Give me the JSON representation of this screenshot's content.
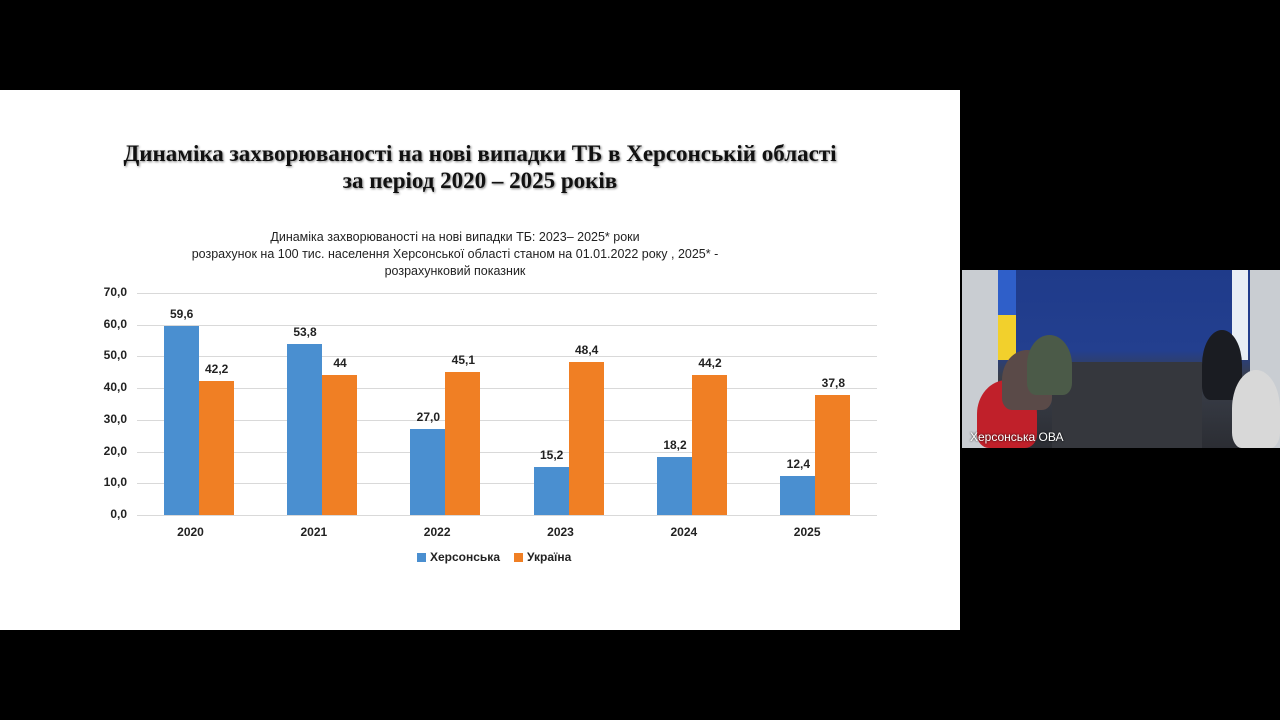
{
  "slide": {
    "title_line1": "Динаміка захворюваності на нові випадки ТБ в Херсонській області",
    "title_line2": "за період 2020 – 2025 років"
  },
  "chart_data": {
    "type": "bar",
    "title": "Динаміка захворюваності на нові випадки ТБ: 2023– 2025* роки",
    "subtitle_line1": "розрахунок на 100 тис. населення Херсонської області станом на 01.01.2022 року , 2025* -",
    "subtitle_line2": "розрахунковий показник",
    "categories": [
      "2020",
      "2021",
      "2022",
      "2023",
      "2024",
      "2025"
    ],
    "series": [
      {
        "name": "Херсонська",
        "color": "#4a8fd0",
        "values": [
          59.6,
          53.8,
          27.0,
          15.2,
          18.2,
          12.4
        ],
        "labels": [
          "59,6",
          "53,8",
          "27,0",
          "15,2",
          "18,2",
          "12,4"
        ]
      },
      {
        "name": "Україна",
        "color": "#f07f24",
        "values": [
          42.2,
          44,
          45.1,
          48.4,
          44.2,
          37.8
        ],
        "labels": [
          "42,2",
          "44",
          "45,1",
          "48,4",
          "44,2",
          "37,8"
        ]
      }
    ],
    "yticks": [
      "0,0",
      "10,0",
      "20,0",
      "30,0",
      "40,0",
      "50,0",
      "60,0",
      "70,0"
    ],
    "ylim": [
      0,
      70
    ],
    "xlabel": "",
    "ylabel": "",
    "grid": true,
    "legend_position": "bottom"
  },
  "video": {
    "label": "Херсонська ОВА"
  }
}
